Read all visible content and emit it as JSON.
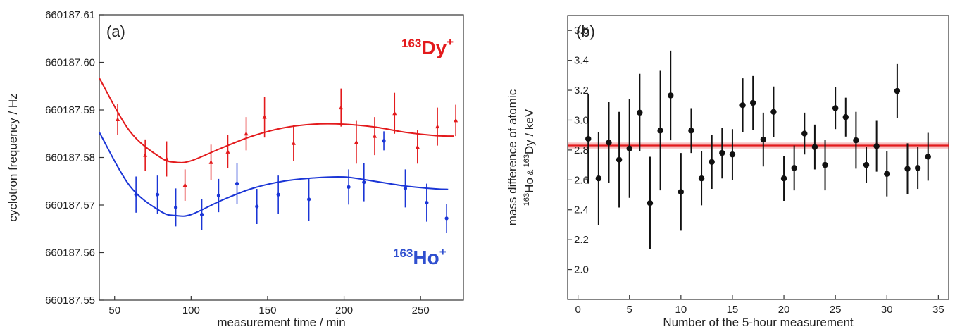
{
  "chart_data": [
    {
      "panel_label": "(a)",
      "type": "scatter",
      "xlabel": "measurement time / min",
      "ylabel": "cyclotron frequency / Hz",
      "xlim": [
        40,
        278
      ],
      "ylim": [
        660187.55,
        660187.61
      ],
      "xticks": [
        50,
        100,
        150,
        200,
        250
      ],
      "yticks": [
        "660187.55",
        "660187.56",
        "660187.57",
        "660187.58",
        "660187.59",
        "660187.60",
        "660187.61"
      ],
      "grid": false,
      "series": [
        {
          "name": "163Dy+",
          "label_mass": "163",
          "label_symbol": "Dy",
          "label_charge": "+",
          "color": "#e31a1c",
          "marker": "triangle",
          "points": [
            {
              "x": 52,
              "y": 660187.588,
              "err": 0.0033
            },
            {
              "x": 70,
              "y": 660187.5805,
              "err": 0.0033
            },
            {
              "x": 84,
              "y": 660187.5797,
              "err": 0.0037
            },
            {
              "x": 96,
              "y": 660187.5742,
              "err": 0.0033
            },
            {
              "x": 113,
              "y": 660187.579,
              "err": 0.0037
            },
            {
              "x": 124,
              "y": 660187.5812,
              "err": 0.0035
            },
            {
              "x": 136,
              "y": 660187.585,
              "err": 0.0035
            },
            {
              "x": 148,
              "y": 660187.5885,
              "err": 0.0043
            },
            {
              "x": 167,
              "y": 660187.583,
              "err": 0.0038
            },
            {
              "x": 198,
              "y": 660187.5905,
              "err": 0.004
            },
            {
              "x": 208,
              "y": 660187.5832,
              "err": 0.0045
            },
            {
              "x": 220,
              "y": 660187.5845,
              "err": 0.004
            },
            {
              "x": 233,
              "y": 660187.5893,
              "err": 0.0043
            },
            {
              "x": 248,
              "y": 660187.5822,
              "err": 0.0035
            },
            {
              "x": 261,
              "y": 660187.5865,
              "err": 0.004
            },
            {
              "x": 273,
              "y": 660187.5878,
              "err": 0.0033
            }
          ],
          "fit": [
            [
              40,
              660187.5967
            ],
            [
              60,
              660187.5855
            ],
            [
              80,
              660187.58
            ],
            [
              90,
              660187.579
            ],
            [
              100,
              660187.5793
            ],
            [
              120,
              660187.582
            ],
            [
              140,
              660187.5845
            ],
            [
              160,
              660187.5862
            ],
            [
              180,
              660187.587
            ],
            [
              200,
              660187.587
            ],
            [
              220,
              660187.5864
            ],
            [
              240,
              660187.5853
            ],
            [
              260,
              660187.5846
            ],
            [
              272,
              660187.5845
            ]
          ]
        },
        {
          "name": "163Ho+",
          "label_mass": "163",
          "label_symbol": "Ho",
          "label_charge": "+",
          "color": "#1a35d6",
          "marker": "circle",
          "points": [
            {
              "x": 64,
              "y": 660187.5722,
              "err": 0.0038
            },
            {
              "x": 78,
              "y": 660187.5722,
              "err": 0.004
            },
            {
              "x": 90,
              "y": 660187.5695,
              "err": 0.004
            },
            {
              "x": 107,
              "y": 660187.568,
              "err": 0.0033
            },
            {
              "x": 118,
              "y": 660187.572,
              "err": 0.0035
            },
            {
              "x": 130,
              "y": 660187.5745,
              "err": 0.0043
            },
            {
              "x": 143,
              "y": 660187.5697,
              "err": 0.0037
            },
            {
              "x": 157,
              "y": 660187.5722,
              "err": 0.004
            },
            {
              "x": 177,
              "y": 660187.5712,
              "err": 0.0045
            },
            {
              "x": 203,
              "y": 660187.5738,
              "err": 0.0037
            },
            {
              "x": 213,
              "y": 660187.5748,
              "err": 0.004
            },
            {
              "x": 226,
              "y": 660187.5835,
              "err": 0.002
            },
            {
              "x": 240,
              "y": 660187.5735,
              "err": 0.004
            },
            {
              "x": 254,
              "y": 660187.5705,
              "err": 0.004
            },
            {
              "x": 267,
              "y": 660187.5672,
              "err": 0.003
            }
          ],
          "fit": [
            [
              40,
              660187.5853
            ],
            [
              60,
              660187.574
            ],
            [
              80,
              660187.5687
            ],
            [
              90,
              660187.5678
            ],
            [
              100,
              660187.568
            ],
            [
              120,
              660187.571
            ],
            [
              140,
              660187.5735
            ],
            [
              160,
              660187.575
            ],
            [
              180,
              660187.5757
            ],
            [
              200,
              660187.5759
            ],
            [
              220,
              660187.575
            ],
            [
              240,
              660187.574
            ],
            [
              260,
              660187.5734
            ],
            [
              268,
              660187.5733
            ]
          ]
        }
      ]
    },
    {
      "panel_label": "(b)",
      "type": "scatter",
      "xlabel": "Number of the 5-hour measurement",
      "ylabel_line1": "mass difference of atomic",
      "ylabel_line2": {
        "mass1": "163",
        "sym1": "Ho",
        "amp": " & ",
        "mass2": "163",
        "sym2": "Dy",
        "unit": " / keV"
      },
      "xlim": [
        -1,
        36
      ],
      "ylim": [
        1.8,
        3.7
      ],
      "xticks": [
        0,
        5,
        10,
        15,
        20,
        25,
        30,
        35
      ],
      "yticks": [
        "2.0",
        "2.2",
        "2.4",
        "2.6",
        "2.8",
        "3.0",
        "3.2",
        "3.4",
        "3.6"
      ],
      "grid": false,
      "color": "#111111",
      "mean": 2.83,
      "mean_band": [
        2.81,
        2.85
      ],
      "mean_color": "#e31a1c",
      "points": [
        {
          "x": 1,
          "y": 2.875,
          "err": 0.3
        },
        {
          "x": 2,
          "y": 2.61,
          "err": 0.31
        },
        {
          "x": 3,
          "y": 2.85,
          "err": 0.27
        },
        {
          "x": 4,
          "y": 2.735,
          "err": 0.32
        },
        {
          "x": 5,
          "y": 2.81,
          "err": 0.33
        },
        {
          "x": 6,
          "y": 3.05,
          "err": 0.26
        },
        {
          "x": 7,
          "y": 2.445,
          "err": 0.31
        },
        {
          "x": 8,
          "y": 2.93,
          "err": 0.4
        },
        {
          "x": 9,
          "y": 3.165,
          "err": 0.3
        },
        {
          "x": 10,
          "y": 2.52,
          "err": 0.26
        },
        {
          "x": 11,
          "y": 2.93,
          "err": 0.15
        },
        {
          "x": 12,
          "y": 2.61,
          "err": 0.18
        },
        {
          "x": 13,
          "y": 2.72,
          "err": 0.18
        },
        {
          "x": 14,
          "y": 2.78,
          "err": 0.17
        },
        {
          "x": 15,
          "y": 2.77,
          "err": 0.17
        },
        {
          "x": 16,
          "y": 3.1,
          "err": 0.18
        },
        {
          "x": 17,
          "y": 3.115,
          "err": 0.18
        },
        {
          "x": 18,
          "y": 2.87,
          "err": 0.18
        },
        {
          "x": 19,
          "y": 3.055,
          "err": 0.17
        },
        {
          "x": 20,
          "y": 2.61,
          "err": 0.15
        },
        {
          "x": 21,
          "y": 2.68,
          "err": 0.15
        },
        {
          "x": 22,
          "y": 2.91,
          "err": 0.14
        },
        {
          "x": 23,
          "y": 2.82,
          "err": 0.15
        },
        {
          "x": 24,
          "y": 2.7,
          "err": 0.17
        },
        {
          "x": 25,
          "y": 3.08,
          "err": 0.14
        },
        {
          "x": 26,
          "y": 3.02,
          "err": 0.13
        },
        {
          "x": 27,
          "y": 2.865,
          "err": 0.19
        },
        {
          "x": 28,
          "y": 2.7,
          "err": 0.12
        },
        {
          "x": 29,
          "y": 2.825,
          "err": 0.17
        },
        {
          "x": 30,
          "y": 2.64,
          "err": 0.15
        },
        {
          "x": 31,
          "y": 3.195,
          "err": 0.18
        },
        {
          "x": 32,
          "y": 2.675,
          "err": 0.17
        },
        {
          "x": 33,
          "y": 2.68,
          "err": 0.14
        },
        {
          "x": 34,
          "y": 2.755,
          "err": 0.16
        }
      ]
    }
  ]
}
